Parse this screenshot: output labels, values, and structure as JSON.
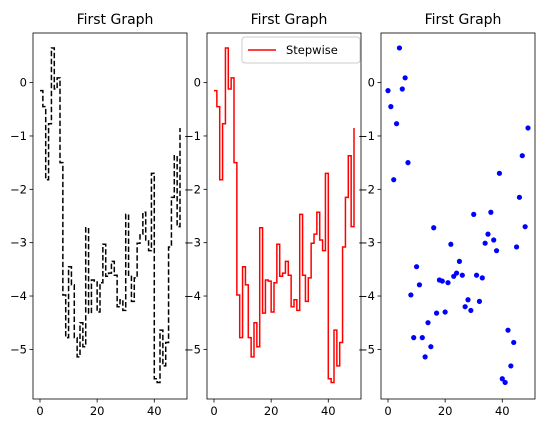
{
  "chart_data": [
    {
      "type": "line",
      "style": "step-post",
      "title": "First Graph",
      "xlabel": "",
      "ylabel": "",
      "xlim": [
        -2.45,
        51.45
      ],
      "ylim": [
        -5.93,
        0.93
      ],
      "xticks": [
        0,
        20,
        40
      ],
      "yticks": [
        0,
        -1,
        -2,
        -3,
        -4,
        -5
      ],
      "grid": false,
      "series": [
        {
          "color": "#000000",
          "linestyle": "dashed",
          "x": [
            0,
            1,
            2,
            3,
            4,
            5,
            6,
            7,
            8,
            9,
            10,
            11,
            12,
            13,
            14,
            15,
            16,
            17,
            18,
            19,
            20,
            21,
            22,
            23,
            24,
            25,
            26,
            27,
            28,
            29,
            30,
            31,
            32,
            33,
            34,
            35,
            36,
            37,
            38,
            39,
            40,
            41,
            42,
            43,
            44,
            45,
            46,
            47,
            48,
            49
          ],
          "y": [
            -0.15,
            -0.45,
            -1.82,
            -0.77,
            0.65,
            -0.12,
            0.09,
            -1.5,
            -3.98,
            -4.78,
            -3.45,
            -3.79,
            -4.78,
            -5.14,
            -4.5,
            -4.95,
            -2.72,
            -4.32,
            -3.7,
            -3.72,
            -4.3,
            -3.75,
            -3.03,
            -3.63,
            -3.57,
            -3.35,
            -3.61,
            -4.2,
            -4.07,
            -4.27,
            -2.47,
            -3.61,
            -4.1,
            -3.66,
            -3.01,
            -2.84,
            -2.43,
            -2.95,
            -3.15,
            -1.7,
            -5.55,
            -5.62,
            -4.64,
            -5.31,
            -4.87,
            -3.08,
            -2.15,
            -1.37,
            -2.7,
            -0.85
          ]
        }
      ]
    },
    {
      "type": "line",
      "style": "step-post",
      "title": "First Graph",
      "xlabel": "",
      "ylabel": "",
      "xlim": [
        -2.45,
        51.45
      ],
      "ylim": [
        -5.93,
        0.93
      ],
      "xticks": [
        0,
        20,
        40
      ],
      "yticks": [
        0,
        -1,
        -2,
        -3,
        -4,
        -5
      ],
      "grid": false,
      "legend": {
        "position": "top-right",
        "entries": [
          "Stepwise"
        ]
      },
      "series": [
        {
          "name": "Stepwise",
          "color": "#ff0000",
          "linestyle": "solid",
          "x": [
            0,
            1,
            2,
            3,
            4,
            5,
            6,
            7,
            8,
            9,
            10,
            11,
            12,
            13,
            14,
            15,
            16,
            17,
            18,
            19,
            20,
            21,
            22,
            23,
            24,
            25,
            26,
            27,
            28,
            29,
            30,
            31,
            32,
            33,
            34,
            35,
            36,
            37,
            38,
            39,
            40,
            41,
            42,
            43,
            44,
            45,
            46,
            47,
            48,
            49
          ],
          "y": [
            -0.15,
            -0.45,
            -1.82,
            -0.77,
            0.65,
            -0.12,
            0.09,
            -1.5,
            -3.98,
            -4.78,
            -3.45,
            -3.79,
            -4.78,
            -5.14,
            -4.5,
            -4.95,
            -2.72,
            -4.32,
            -3.7,
            -3.72,
            -4.3,
            -3.75,
            -3.03,
            -3.63,
            -3.57,
            -3.35,
            -3.61,
            -4.2,
            -4.07,
            -4.27,
            -2.47,
            -3.61,
            -4.1,
            -3.66,
            -3.01,
            -2.84,
            -2.43,
            -2.95,
            -3.15,
            -1.7,
            -5.55,
            -5.62,
            -4.64,
            -5.31,
            -4.87,
            -3.08,
            -2.15,
            -1.37,
            -2.7,
            -0.85
          ]
        }
      ]
    },
    {
      "type": "scatter",
      "title": "First Graph",
      "xlabel": "",
      "ylabel": "",
      "xlim": [
        -2.45,
        51.45
      ],
      "ylim": [
        -5.93,
        0.93
      ],
      "xticks": [
        0,
        20,
        40
      ],
      "yticks": [
        0,
        -1,
        -2,
        -3,
        -4,
        -5
      ],
      "grid": false,
      "series": [
        {
          "color": "#0000ff",
          "marker": "dot",
          "x": [
            0,
            1,
            2,
            3,
            4,
            5,
            6,
            7,
            8,
            9,
            10,
            11,
            12,
            13,
            14,
            15,
            16,
            17,
            18,
            19,
            20,
            21,
            22,
            23,
            24,
            25,
            26,
            27,
            28,
            29,
            30,
            31,
            32,
            33,
            34,
            35,
            36,
            37,
            38,
            39,
            40,
            41,
            42,
            43,
            44,
            45,
            46,
            47,
            48,
            49
          ],
          "y": [
            -0.15,
            -0.45,
            -1.82,
            -0.77,
            0.65,
            -0.12,
            0.09,
            -1.5,
            -3.98,
            -4.78,
            -3.45,
            -3.79,
            -4.78,
            -5.14,
            -4.5,
            -4.95,
            -2.72,
            -4.32,
            -3.7,
            -3.72,
            -4.3,
            -3.75,
            -3.03,
            -3.63,
            -3.57,
            -3.35,
            -3.61,
            -4.2,
            -4.07,
            -4.27,
            -2.47,
            -3.61,
            -4.1,
            -3.66,
            -3.01,
            -2.84,
            -2.43,
            -2.95,
            -3.15,
            -1.7,
            -5.55,
            -5.62,
            -4.64,
            -5.31,
            -4.87,
            -3.08,
            -2.15,
            -1.37,
            -2.7,
            -0.85
          ]
        }
      ]
    }
  ]
}
